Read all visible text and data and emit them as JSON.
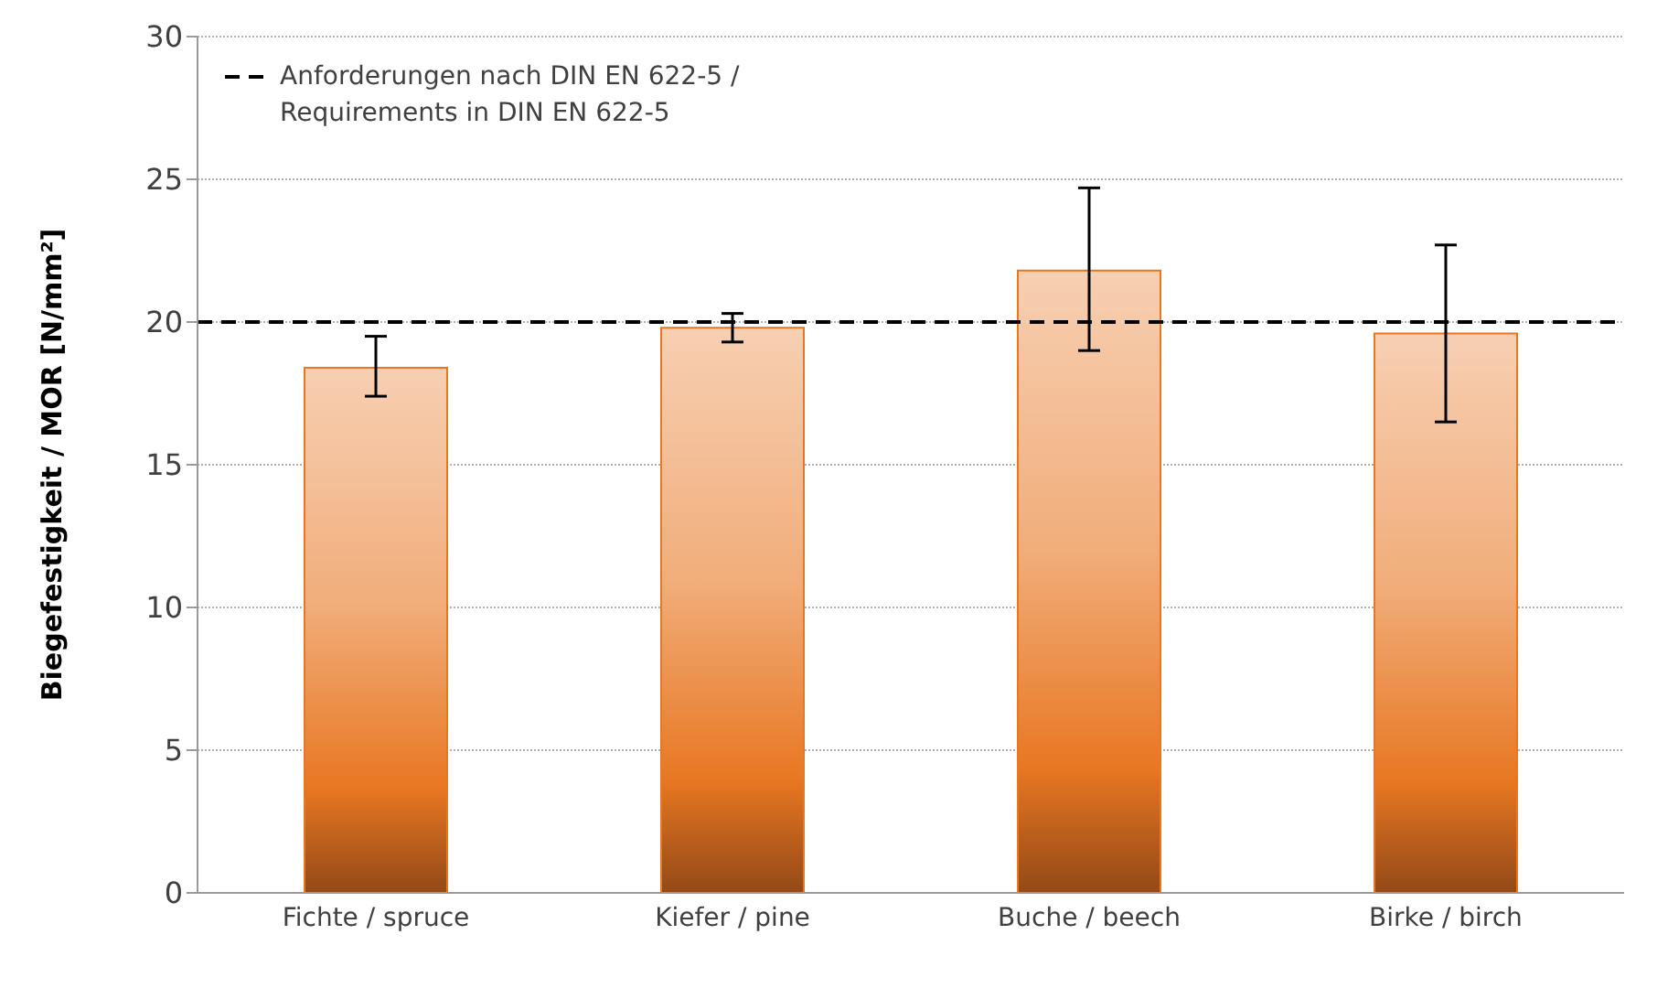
{
  "chart_data": {
    "type": "bar",
    "ylabel": "Biegefestigkeit / MOR [N/mm²]",
    "categories": [
      "Fichte / spruce",
      "Kiefer / pine",
      "Buche / beech",
      "Birke / birch"
    ],
    "series": [
      {
        "color": "#e87722",
        "values": [
          18.4,
          19.8,
          21.8,
          19.6
        ],
        "errors": [
          [
            17.4,
            19.5
          ],
          [
            19.3,
            20.3
          ],
          [
            19.0,
            24.7
          ],
          [
            16.5,
            22.7
          ]
        ]
      }
    ],
    "ylim": [
      0,
      30
    ],
    "yticks": [
      0,
      5,
      10,
      15,
      20,
      25,
      30
    ],
    "grid": "y",
    "ref_lines": [
      {
        "axis": "y",
        "value": 20,
        "label": "Anforderungen nach DIN EN 622-5 / Requirements in DIN EN 622-5",
        "color": "#000000",
        "line_style": "dashed"
      }
    ],
    "legend": "top left"
  }
}
